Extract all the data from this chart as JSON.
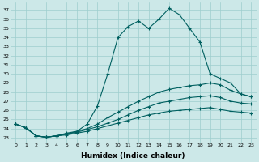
{
  "xlabel": "Humidex (Indice chaleur)",
  "bg_color": "#cce8e8",
  "grid_color": "#9ecece",
  "line_color": "#006060",
  "x_ticks": [
    0,
    1,
    2,
    3,
    4,
    5,
    6,
    7,
    8,
    9,
    10,
    11,
    12,
    13,
    14,
    15,
    16,
    17,
    18,
    19,
    20,
    21,
    22,
    23
  ],
  "y_ticks": [
    23,
    24,
    25,
    26,
    27,
    28,
    29,
    30,
    31,
    32,
    33,
    34,
    35,
    36,
    37
  ],
  "ylim": [
    22.5,
    37.8
  ],
  "xlim": [
    -0.5,
    23.5
  ],
  "line1_x": [
    0,
    1,
    2,
    3,
    4,
    5,
    6,
    7,
    8,
    9,
    10,
    11,
    12,
    13,
    14,
    15,
    16,
    17,
    18,
    19,
    20,
    21,
    22,
    23
  ],
  "line1_y": [
    24.5,
    24.1,
    23.2,
    23.05,
    23.2,
    23.5,
    23.7,
    24.5,
    26.5,
    30.0,
    34.0,
    35.2,
    35.8,
    35.0,
    36.0,
    37.2,
    36.5,
    35.0,
    33.5,
    30.0,
    29.5,
    29.0,
    27.8,
    27.5
  ],
  "line2_x": [
    0,
    1,
    2,
    3,
    4,
    5,
    6,
    7,
    8,
    9,
    10,
    11,
    12,
    13,
    14,
    15,
    16,
    17,
    18,
    19,
    20,
    21,
    22,
    23
  ],
  "line2_y": [
    24.5,
    24.1,
    23.2,
    23.05,
    23.2,
    23.4,
    23.7,
    24.0,
    24.5,
    25.2,
    25.8,
    26.4,
    27.0,
    27.5,
    28.0,
    28.3,
    28.5,
    28.7,
    28.8,
    29.0,
    28.8,
    28.2,
    27.8,
    27.5
  ],
  "line3_x": [
    0,
    1,
    2,
    3,
    4,
    5,
    6,
    7,
    8,
    9,
    10,
    11,
    12,
    13,
    14,
    15,
    16,
    17,
    18,
    19,
    20,
    21,
    22,
    23
  ],
  "line3_y": [
    24.5,
    24.1,
    23.2,
    23.05,
    23.2,
    23.4,
    23.6,
    23.9,
    24.2,
    24.6,
    25.0,
    25.5,
    26.0,
    26.4,
    26.8,
    27.0,
    27.2,
    27.4,
    27.5,
    27.6,
    27.4,
    27.0,
    26.8,
    26.7
  ],
  "line4_x": [
    0,
    1,
    2,
    3,
    4,
    5,
    6,
    7,
    8,
    9,
    10,
    11,
    12,
    13,
    14,
    15,
    16,
    17,
    18,
    19,
    20,
    21,
    22,
    23
  ],
  "line4_y": [
    24.5,
    24.1,
    23.2,
    23.05,
    23.2,
    23.3,
    23.5,
    23.7,
    24.0,
    24.3,
    24.6,
    24.9,
    25.2,
    25.5,
    25.7,
    25.9,
    26.0,
    26.1,
    26.2,
    26.3,
    26.1,
    25.9,
    25.8,
    25.7
  ]
}
